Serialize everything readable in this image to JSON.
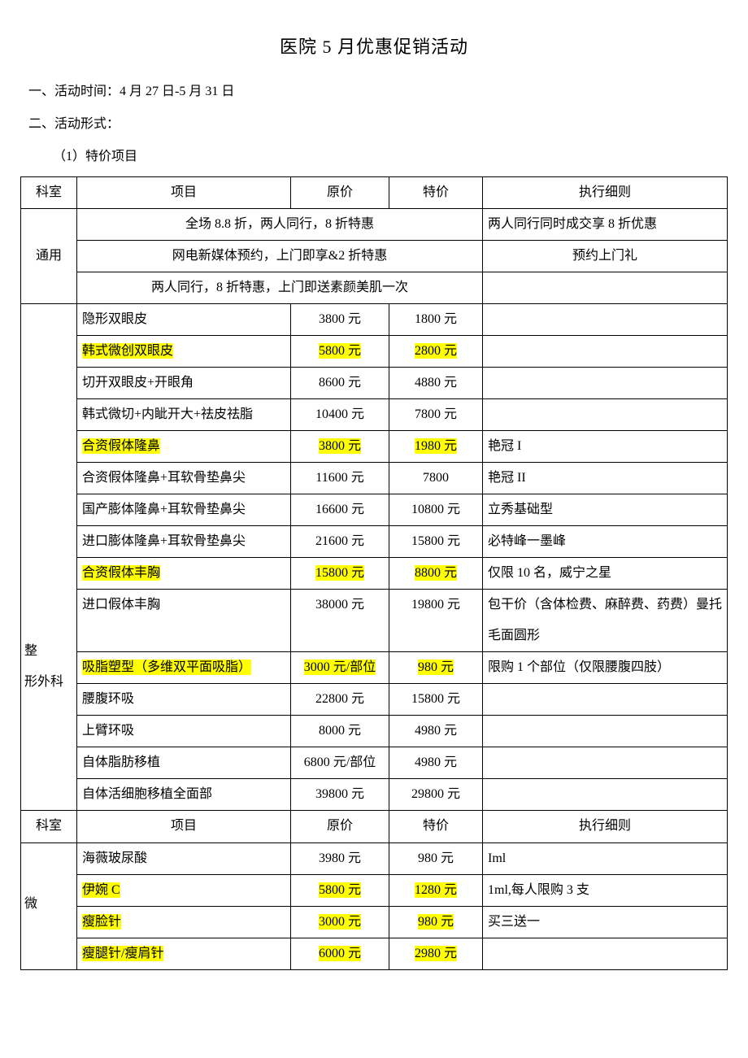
{
  "title": "医院 5 月优惠促销活动",
  "section1": "一、活动时间：4 月 27 日-5 月 31 日",
  "section2": "二、活动形式：",
  "sub1": "（1）特价项目",
  "headers": {
    "dept": "科室",
    "item": "项目",
    "orig": "原价",
    "sale": "特价",
    "note": "执行细则"
  },
  "general": {
    "dept": "通用",
    "r1_item": "全场 8.8 折，两人同行，8 折特惠",
    "r1_note": "两人同行同时成交享 8 折优惠",
    "r2_item": "网电新媒体预约，上门即享&2 折特惠",
    "r2_note": "预约上门礼",
    "r3_item": "两人同行，8 折特惠，上门即送素颜美肌一次"
  },
  "plastic": {
    "dept1": "整",
    "dept2": "形外科",
    "rows": [
      {
        "item": "隐形双眼皮",
        "orig": "3800 元",
        "sale": "1800 元",
        "note": "",
        "hl": false
      },
      {
        "item": "韩式微创双眼皮",
        "orig": "5800 元",
        "sale": "2800 元",
        "note": "",
        "hl": true
      },
      {
        "item": "切开双眼皮+开眼角",
        "orig": "8600 元",
        "sale": "4880 元",
        "note": "",
        "hl": false
      },
      {
        "item": "韩式微切+内眦开大+祛皮祛脂",
        "orig": "10400 元",
        "sale": "7800 元",
        "note": "",
        "hl": false
      },
      {
        "item": "合资假体隆鼻",
        "orig": "3800 元",
        "sale": "1980 元",
        "note": "艳冠 I",
        "hl": true
      },
      {
        "item": "合资假体隆鼻+耳软骨垫鼻尖",
        "orig": "11600 元",
        "sale": "7800",
        "note": "艳冠 II",
        "hl": false
      },
      {
        "item": "国产膨体隆鼻+耳软骨垫鼻尖",
        "orig": "16600 元",
        "sale": "10800 元",
        "note": "立秀基础型",
        "hl": false
      },
      {
        "item": "进口膨体隆鼻+耳软骨垫鼻尖",
        "orig": "21600 元",
        "sale": "15800 元",
        "note": "必特峰一墨峰",
        "hl": false
      },
      {
        "item": "合资假体丰胸",
        "orig": "15800 元",
        "sale": "8800 元",
        "note": "仅限 10 名，威宁之星",
        "hl": true
      },
      {
        "item": "进口假体丰胸",
        "orig": "38000 元",
        "sale": "19800 元",
        "note": "包干价（含体检费、麻醉费、药费）曼托毛面圆形",
        "hl": false,
        "tall": true
      },
      {
        "item": "吸脂塑型（多维双平面吸脂）",
        "orig": "3000 元/部位",
        "sale": "980 元",
        "note": "限购 1 个部位（仅限腰腹四肢）",
        "hl": true
      },
      {
        "item": "腰腹环吸",
        "orig": "22800 元",
        "sale": "15800 元",
        "note": "",
        "hl": false
      },
      {
        "item": "上臂环吸",
        "orig": "8000 元",
        "sale": "4980 元",
        "note": "",
        "hl": false
      },
      {
        "item": "自体脂肪移植",
        "orig": "6800 元/部位",
        "sale": "4980 元",
        "note": "",
        "hl": false
      },
      {
        "item": "自体活细胞移植全面部",
        "orig": "39800 元",
        "sale": "29800 元",
        "note": "",
        "hl": false
      }
    ]
  },
  "micro": {
    "dept": "微",
    "rows": [
      {
        "item": "海薇玻尿酸",
        "orig": "3980 元",
        "sale": "980 元",
        "note": "Iml",
        "hl": false
      },
      {
        "item": "伊婉 C",
        "orig": "5800 元",
        "sale": "1280 元",
        "note": "1ml,每人限购 3 支",
        "hl": true
      },
      {
        "item": "瘦脸针",
        "orig": "3000 元",
        "sale": "980 元",
        "note": "买三送一",
        "hl": true
      },
      {
        "item": "瘦腿针/瘦肩针",
        "orig": "6000 元",
        "sale": "2980 元",
        "note": "",
        "hl": true
      }
    ]
  }
}
